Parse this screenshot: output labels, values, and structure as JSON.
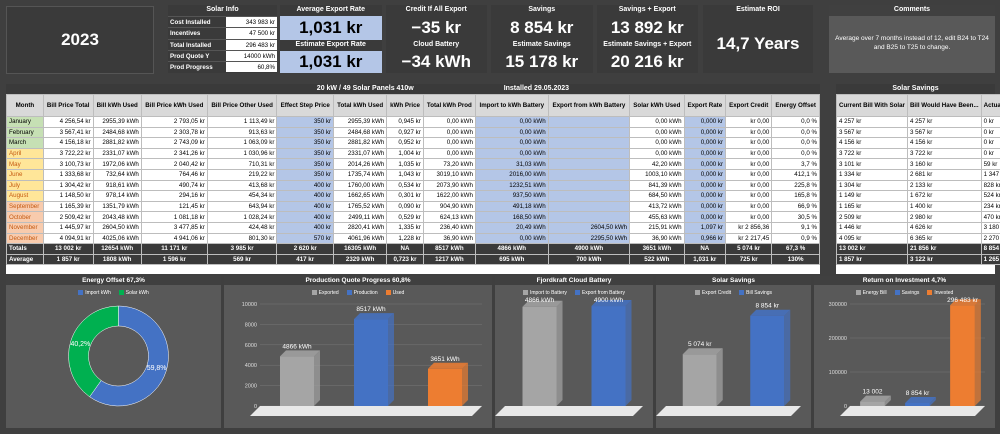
{
  "year": "2023",
  "info": {
    "title": "Solar Info",
    "rows": [
      {
        "label": "Cost Installed",
        "value": "343 983 kr"
      },
      {
        "label": "Incentives",
        "value": "47 500 kr"
      },
      {
        "label": "Total Installed",
        "value": "296 483 kr"
      },
      {
        "label": "Prod Quote Y",
        "value": "14000 kWh"
      },
      {
        "label": "Prod Progress",
        "value": "60,8%"
      }
    ]
  },
  "kpi": [
    {
      "label": "Average Export Rate",
      "value": "1,031 kr"
    },
    {
      "label": "Credit If All Export",
      "value": "−35 kr"
    },
    {
      "label": "Savings",
      "value": "8 854 kr"
    },
    {
      "label": "Savings + Export",
      "value": "13 892 kr"
    },
    {
      "label": "Estimate Export Rate",
      "value": "1,031 kr"
    },
    {
      "label": "Cloud Battery",
      "value": "−34 kWh"
    },
    {
      "label": "Estimate Savings",
      "value": "15 178 kr"
    },
    {
      "label": "Estimate Savings + Export",
      "value": "20 216 kr"
    }
  ],
  "roi": {
    "label": "Estimate ROI",
    "value": "14,7 Years"
  },
  "comments": {
    "title": "Comments",
    "text": "Average over 7 months instead of 12, edit B24 to T24 and B25 to T25 to change."
  },
  "main_table": {
    "title": "20 kW / 49 Solar Panels 410w",
    "installed": "Installed 29.05.2023",
    "headers": [
      "Month",
      "Bill Price Total",
      "Bill kWh Used",
      "Bill Price kWh Used",
      "Bill Price Other Used",
      "Effect Step Price",
      "Total kWh Used",
      "kWh Price",
      "Total kWh Prod",
      "Import to kWh Battery",
      "Export from kWh Battery",
      "Solar kWh Used",
      "Export Rate",
      "Export Credit",
      "Energy Offset"
    ],
    "rows": [
      [
        "January",
        "4 256,54 kr",
        "2955,39 kWh",
        "2 793,05 kr",
        "1 113,49 kr",
        "350 kr",
        "2955,39 kWh",
        "0,945 kr",
        "0,00 kWh",
        "0,00 kWh",
        "",
        "0,00 kWh",
        "0,000 kr",
        "kr 0,00",
        "0,0 %"
      ],
      [
        "February",
        "3 567,41 kr",
        "2484,68 kWh",
        "2 303,78 kr",
        "913,63 kr",
        "350 kr",
        "2484,68 kWh",
        "0,927 kr",
        "0,00 kWh",
        "0,00 kWh",
        "",
        "0,00 kWh",
        "0,000 kr",
        "kr 0,00",
        "0,0 %"
      ],
      [
        "March",
        "4 156,18 kr",
        "2881,82 kWh",
        "2 743,09 kr",
        "1 063,09 kr",
        "350 kr",
        "2881,82 kWh",
        "0,952 kr",
        "0,00 kWh",
        "0,00 kWh",
        "",
        "0,00 kWh",
        "0,000 kr",
        "kr 0,00",
        "0,0 %"
      ],
      [
        "April",
        "3 722,22 kr",
        "2331,07 kWh",
        "2 341,26 kr",
        "1 030,96 kr",
        "350 kr",
        "2331,07 kWh",
        "1,004 kr",
        "0,00 kWh",
        "0,00 kWh",
        "",
        "0,00 kWh",
        "0,000 kr",
        "kr 0,00",
        "0,0 %"
      ],
      [
        "May",
        "3 100,73 kr",
        "1972,06 kWh",
        "2 040,42 kr",
        "710,31 kr",
        "350 kr",
        "2014,26 kWh",
        "1,035 kr",
        "73,20 kWh",
        "31,03 kWh",
        "",
        "42,20 kWh",
        "0,000 kr",
        "kr 0,00",
        "3,7 %"
      ],
      [
        "June",
        "1 333,68 kr",
        "732,64 kWh",
        "764,46 kr",
        "219,22 kr",
        "350 kr",
        "1735,74 kWh",
        "1,043 kr",
        "3019,10 kWh",
        "2016,00 kWh",
        "",
        "1003,10 kWh",
        "0,000 kr",
        "kr 0,00",
        "412,1 %"
      ],
      [
        "July",
        "1 304,42 kr",
        "918,61 kWh",
        "490,74 kr",
        "413,68 kr",
        "400 kr",
        "1760,00 kWh",
        "0,534 kr",
        "2073,90 kWh",
        "1232,51 kWh",
        "",
        "841,39 kWh",
        "0,000 kr",
        "kr 0,00",
        "225,8 %"
      ],
      [
        "August",
        "1 148,50 kr",
        "978,14 kWh",
        "294,16 kr",
        "454,34 kr",
        "400 kr",
        "1662,65 kWh",
        "0,301 kr",
        "1622,00 kWh",
        "937,50 kWh",
        "",
        "684,50 kWh",
        "0,000 kr",
        "kr 0,00",
        "165,8 %"
      ],
      [
        "September",
        "1 165,39 kr",
        "1351,79 kWh",
        "121,45 kr",
        "643,94 kr",
        "400 kr",
        "1765,52 kWh",
        "0,090 kr",
        "904,90 kWh",
        "491,18 kWh",
        "",
        "413,72 kWh",
        "0,000 kr",
        "kr 0,00",
        "66,9 %"
      ],
      [
        "October",
        "2 509,42 kr",
        "2043,48 kWh",
        "1 081,18 kr",
        "1 028,24 kr",
        "400 kr",
        "2499,11 kWh",
        "0,529 kr",
        "624,13 kWh",
        "168,50 kWh",
        "",
        "455,63 kWh",
        "0,000 kr",
        "kr 0,00",
        "30,5 %"
      ],
      [
        "November",
        "1 445,97 kr",
        "2604,50 kWh",
        "3 477,85 kr",
        "424,48 kr",
        "400 kr",
        "2820,41 kWh",
        "1,335 kr",
        "236,40 kWh",
        "20,49 kWh",
        "2604,50 kWh",
        "215,91 kWh",
        "1,097 kr",
        "kr 2 856,36",
        "9,1 %"
      ],
      [
        "December",
        "4 094,91 kr",
        "4025,06 kWh",
        "4 941,06 kr",
        "801,30 kr",
        "570 kr",
        "4061,96 kWh",
        "1,228 kr",
        "36,90 kWh",
        "0,00 kWh",
        "2295,50 kWh",
        "36,90 kWh",
        "0,966 kr",
        "kr 2 217,45",
        "0,9 %"
      ]
    ],
    "totals": [
      "Totals",
      "13 002 kr",
      "12654 kWh",
      "11 171 kr",
      "3 985 kr",
      "2 620 kr",
      "16305 kWh",
      "NA",
      "8517 kWh",
      "4866 kWh",
      "4900 kWh",
      "3651 kWh",
      "NA",
      "5 074 kr",
      "67,3 %"
    ],
    "average": [
      "Average",
      "1 857 kr",
      "1808 kWh",
      "1 596 kr",
      "569 kr",
      "417 kr",
      "2329 kWh",
      "0,723 kr",
      "1217 kWh",
      "695 kWh",
      "700 kWh",
      "522 kWh",
      "1,031 kr",
      "725 kr",
      "130%"
    ]
  },
  "savings_table": {
    "title": "Solar Savings",
    "headers": [
      "Current Bill With Solar",
      "Bill Would Have Been...",
      "Actual Savings"
    ],
    "rows": [
      [
        "4 257 kr",
        "4 257 kr",
        "0 kr"
      ],
      [
        "3 567 kr",
        "3 567 kr",
        "0 kr"
      ],
      [
        "4 156 kr",
        "4 156 kr",
        "0 kr"
      ],
      [
        "3 722 kr",
        "3 722 kr",
        "0 kr"
      ],
      [
        "3 101 kr",
        "3 160 kr",
        "59 kr"
      ],
      [
        "1 334 kr",
        "2 681 kr",
        "1 347 kr"
      ],
      [
        "1 304 kr",
        "2 133 kr",
        "828 kr"
      ],
      [
        "1 149 kr",
        "1 672 kr",
        "524 kr"
      ],
      [
        "1 165 kr",
        "1 400 kr",
        "234 kr"
      ],
      [
        "2 509 kr",
        "2 980 kr",
        "470 kr"
      ],
      [
        "1 446 kr",
        "4 626 kr",
        "3 180 kr"
      ],
      [
        "4 095 kr",
        "6 365 kr",
        "2 270 kr"
      ]
    ],
    "totals": [
      "13 002 kr",
      "21 856 kr",
      "8 854 kr"
    ],
    "average": [
      "1 857 kr",
      "3 122 kr",
      "1 265 kr"
    ]
  },
  "chart_data": [
    {
      "type": "pie",
      "title": "Energy Offset 67,3%",
      "legend": [
        "Import kWh",
        "Solar kWh"
      ],
      "values": [
        59.8,
        40.2
      ],
      "labels": [
        "59,8%",
        "40,2%"
      ],
      "colors": [
        "#4472c4",
        "#00b050"
      ]
    },
    {
      "type": "bar",
      "title": "Production Quote Progress 60,8%",
      "legend": [
        "Exported",
        "Production",
        "Used"
      ],
      "categories": [
        "Exported",
        "Production",
        "Used"
      ],
      "values": [
        4866,
        8517,
        3651
      ],
      "labels": [
        "4866 kWh",
        "8517 kWh",
        "3651 kWh"
      ],
      "ylim": [
        0,
        10000
      ],
      "yticks": [
        "10000",
        "8000",
        "6000",
        "4000",
        "2000",
        "0"
      ],
      "colors": [
        "#a5a5a5",
        "#4472c4",
        "#ed7d31"
      ]
    },
    {
      "type": "bar",
      "title": "Fjordkraft Cloud Battery",
      "legend": [
        "Import to Battery",
        "Export from Battery"
      ],
      "categories": [
        "Import to Battery",
        "Export from Battery"
      ],
      "values": [
        4866,
        4900
      ],
      "labels": [
        "4866 kWh",
        "4900 kWh"
      ],
      "ylim": [
        0,
        5000
      ],
      "colors": [
        "#a5a5a5",
        "#4472c4"
      ]
    },
    {
      "type": "bar",
      "title": "Solar Savings",
      "legend": [
        "Export Credit",
        "Bill Savings"
      ],
      "categories": [
        "Export Credit",
        "Bill Savings"
      ],
      "values": [
        5074,
        8854
      ],
      "labels": [
        "5 074 kr",
        "8 854 kr"
      ],
      "ylim": [
        0,
        10000
      ],
      "colors": [
        "#a5a5a5",
        "#4472c4"
      ]
    },
    {
      "type": "bar",
      "title": "Return on Investment 4,7%",
      "legend": [
        "Energy Bill",
        "Savings",
        "Invested"
      ],
      "categories": [
        "Energy Bill",
        "Savings",
        "Invested"
      ],
      "values": [
        13002,
        8854,
        296483
      ],
      "labels": [
        "13 002",
        "8 854 kr",
        "296 483 kr"
      ],
      "ylim": [
        0,
        300000
      ],
      "yticks": [
        "300000",
        "200000",
        "100000",
        "0"
      ],
      "colors": [
        "#a5a5a5",
        "#4472c4",
        "#ed7d31"
      ]
    }
  ],
  "colors": {
    "bg": "#3f3f3f",
    "header": "#d9d9d9",
    "blue": "#b4c6e7",
    "winter": "#c6e0b4",
    "summer": "#ffe699"
  }
}
